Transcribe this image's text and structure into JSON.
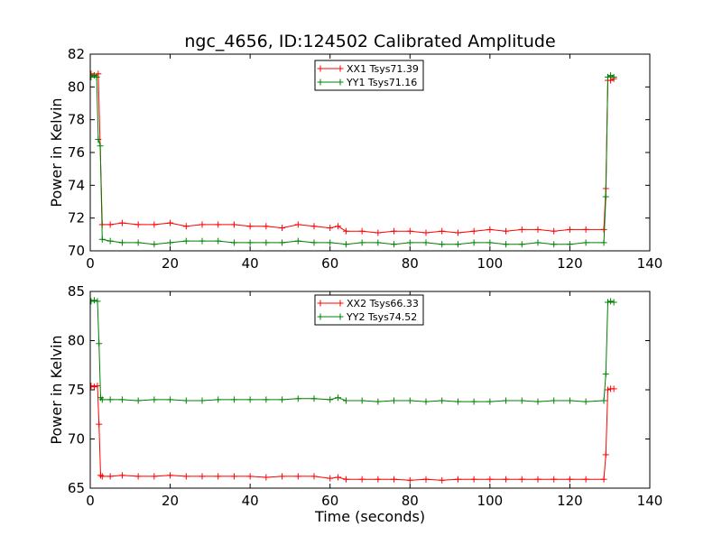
{
  "chart_data": [
    {
      "type": "line",
      "title": "ngc_4656, ID:124502 Calibrated Amplitude",
      "xlabel": "",
      "ylabel": "Power in Kelvin",
      "xlim": [
        0,
        140
      ],
      "ylim": [
        70,
        82
      ],
      "xticks": [
        "0",
        "20",
        "40",
        "60",
        "80",
        "100",
        "120",
        "140"
      ],
      "yticks": [
        "70",
        "72",
        "74",
        "76",
        "78",
        "80",
        "82"
      ],
      "legend_position": "top-center",
      "series": [
        {
          "name": "XX1 Tsys71.39",
          "color": "#ff0000",
          "marker": "+",
          "x": [
            0.2,
            1.0,
            2.0,
            3.0,
            5,
            8,
            12,
            16,
            20,
            24,
            28,
            32,
            36,
            40,
            44,
            48,
            52,
            56,
            60,
            62,
            64,
            68,
            72,
            76,
            80,
            84,
            88,
            92,
            96,
            100,
            104,
            108,
            112,
            116,
            120,
            124,
            128.5,
            129.0,
            129.5,
            130.2,
            131.0
          ],
          "y": [
            80.8,
            80.7,
            80.8,
            71.6,
            71.6,
            71.7,
            71.6,
            71.6,
            71.7,
            71.5,
            71.6,
            71.6,
            71.6,
            71.5,
            71.5,
            71.4,
            71.6,
            71.5,
            71.4,
            71.5,
            71.2,
            71.2,
            71.1,
            71.2,
            71.2,
            71.1,
            71.2,
            71.1,
            71.2,
            71.3,
            71.2,
            71.3,
            71.3,
            71.2,
            71.3,
            71.3,
            71.3,
            73.8,
            80.4,
            80.4,
            80.5
          ]
        },
        {
          "name": "YY1 Tsys71.16",
          "color": "#008000",
          "marker": "+",
          "x": [
            0.2,
            1.0,
            1.6,
            2.0,
            2.5,
            3.0,
            5,
            8,
            12,
            16,
            20,
            24,
            28,
            32,
            36,
            40,
            44,
            48,
            52,
            56,
            60,
            64,
            68,
            72,
            76,
            80,
            84,
            88,
            92,
            96,
            100,
            104,
            108,
            112,
            116,
            120,
            124,
            128.5,
            129.0,
            129.5,
            130.2,
            131.0
          ],
          "y": [
            80.6,
            80.7,
            80.6,
            76.8,
            76.4,
            70.7,
            70.6,
            70.5,
            70.5,
            70.4,
            70.5,
            70.6,
            70.6,
            70.6,
            70.5,
            70.5,
            70.5,
            70.5,
            70.6,
            70.5,
            70.5,
            70.4,
            70.5,
            70.5,
            70.4,
            70.5,
            70.5,
            70.4,
            70.4,
            70.5,
            70.5,
            70.4,
            70.4,
            70.5,
            70.4,
            70.4,
            70.5,
            70.5,
            73.3,
            80.6,
            80.7,
            80.6
          ]
        }
      ]
    },
    {
      "type": "line",
      "title": "",
      "xlabel": "Time (seconds)",
      "ylabel": "Power in Kelvin",
      "xlim": [
        0,
        140
      ],
      "ylim": [
        65,
        85
      ],
      "xticks": [
        "0",
        "20",
        "40",
        "60",
        "80",
        "100",
        "120",
        "140"
      ],
      "yticks": [
        "65",
        "70",
        "75",
        "80",
        "85"
      ],
      "legend_position": "top-center",
      "series": [
        {
          "name": "XX2 Tsys66.33",
          "color": "#ff0000",
          "marker": "+",
          "x": [
            0.2,
            1.0,
            1.8,
            2.2,
            2.6,
            3.0,
            5,
            8,
            12,
            16,
            20,
            24,
            28,
            32,
            36,
            40,
            44,
            48,
            52,
            56,
            60,
            62,
            64,
            68,
            72,
            76,
            80,
            84,
            88,
            92,
            96,
            100,
            104,
            108,
            112,
            116,
            120,
            124,
            128.5,
            129.0,
            129.5,
            130.2,
            131.0
          ],
          "y": [
            75.4,
            75.3,
            75.4,
            71.5,
            66.3,
            66.2,
            66.2,
            66.3,
            66.2,
            66.2,
            66.3,
            66.2,
            66.2,
            66.2,
            66.2,
            66.2,
            66.1,
            66.2,
            66.2,
            66.2,
            66.0,
            66.1,
            65.9,
            65.9,
            65.9,
            65.9,
            65.8,
            65.9,
            65.8,
            65.9,
            65.9,
            65.9,
            65.9,
            65.9,
            65.9,
            65.9,
            65.9,
            65.9,
            65.9,
            68.4,
            75.0,
            75.1,
            75.1
          ]
        },
        {
          "name": "YY2 Tsys74.52",
          "color": "#008000",
          "marker": "+",
          "x": [
            0.2,
            1.0,
            1.8,
            2.2,
            2.6,
            3.0,
            5,
            8,
            12,
            16,
            20,
            24,
            28,
            32,
            36,
            40,
            44,
            48,
            52,
            56,
            60,
            62,
            64,
            68,
            72,
            76,
            80,
            84,
            88,
            92,
            96,
            100,
            104,
            108,
            112,
            116,
            120,
            124,
            128.5,
            129.0,
            129.5,
            130.2,
            131.0
          ],
          "y": [
            84.0,
            84.1,
            84.0,
            79.7,
            74.2,
            74.0,
            74.0,
            74.0,
            73.9,
            74.0,
            74.0,
            73.9,
            73.9,
            74.0,
            74.0,
            74.0,
            74.0,
            74.0,
            74.1,
            74.1,
            74.0,
            74.2,
            73.9,
            73.9,
            73.8,
            73.9,
            73.9,
            73.8,
            73.9,
            73.8,
            73.8,
            73.8,
            73.9,
            73.9,
            73.8,
            73.9,
            73.9,
            73.8,
            73.9,
            76.6,
            83.9,
            84.0,
            83.9
          ]
        }
      ]
    }
  ]
}
